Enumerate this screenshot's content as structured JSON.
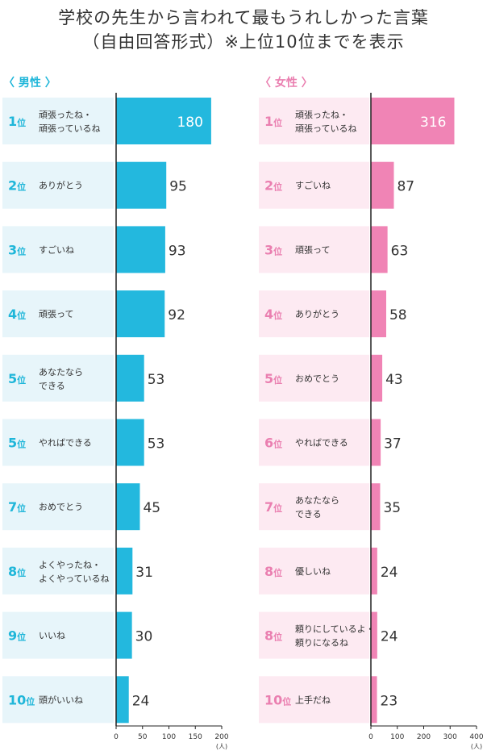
{
  "title_line1": "学校の先生から言われて最もうれしかった言葉",
  "title_line2": "（自由回答形式）※上位10位までを表示",
  "colors": {
    "male_bar": "#23b8de",
    "male_label_bg": "#e7f5fa",
    "male_rank": "#1fb6d9",
    "female_bar": "#f084b5",
    "female_label_bg": "#fdeaf2",
    "female_rank": "#ea7fb0"
  },
  "rank_suffix": "位",
  "chart_data": [
    {
      "type": "bar",
      "name": "男性",
      "section_label": "〈 男性 〉",
      "ranks": [
        "1",
        "2",
        "3",
        "4",
        "5",
        "5",
        "7",
        "8",
        "9",
        "10"
      ],
      "categories": [
        [
          "頑張ったね・",
          "頑張っているね"
        ],
        [
          "ありがとう"
        ],
        [
          "すごいね"
        ],
        [
          "頑張って"
        ],
        [
          "あなたなら",
          "できる"
        ],
        [
          "やればできる"
        ],
        [
          "おめでとう"
        ],
        [
          "よくやったね・",
          "よくやっているね"
        ],
        [
          "いいね"
        ],
        [
          "頭がいいね"
        ]
      ],
      "values": [
        180,
        95,
        93,
        92,
        53,
        53,
        45,
        31,
        30,
        24
      ],
      "xlim": [
        0,
        200
      ],
      "ticks": [
        "0",
        "50",
        "100",
        "150",
        "200"
      ],
      "unit": "(人)"
    },
    {
      "type": "bar",
      "name": "女性",
      "section_label": "〈 女性 〉",
      "ranks": [
        "1",
        "2",
        "3",
        "4",
        "5",
        "6",
        "7",
        "8",
        "8",
        "10"
      ],
      "categories": [
        [
          "頑張ったね・",
          "頑張っているね"
        ],
        [
          "すごいね"
        ],
        [
          "頑張って"
        ],
        [
          "ありがとう"
        ],
        [
          "おめでとう"
        ],
        [
          "やればできる"
        ],
        [
          "あなたなら",
          "できる"
        ],
        [
          "優しいね"
        ],
        [
          "頼りにしているよ・",
          "頼りになるね"
        ],
        [
          "上手だね"
        ]
      ],
      "values": [
        316,
        87,
        63,
        58,
        43,
        37,
        35,
        24,
        24,
        23
      ],
      "xlim": [
        0,
        400
      ],
      "ticks": [
        "0",
        "100",
        "200",
        "300",
        "400"
      ],
      "unit": "(人)"
    }
  ]
}
